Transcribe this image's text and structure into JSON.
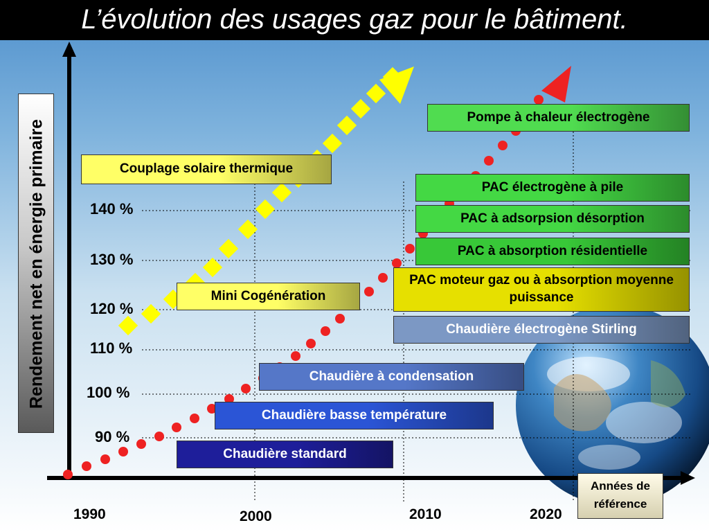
{
  "title": "L’évolution des usages gaz pour le bâtiment.",
  "y_axis_title": "Rendement net en énergie primaire",
  "x_axis_title": "Années de référence",
  "y_ticks": [
    {
      "label": "90 %",
      "value": 90
    },
    {
      "label": "100 %",
      "value": 100
    },
    {
      "label": "110 %",
      "value": 110
    },
    {
      "label": "120 %",
      "value": 120
    },
    {
      "label": "130 %",
      "value": 130
    },
    {
      "label": "140 %",
      "value": 140
    }
  ],
  "x_ticks": [
    "1990",
    "2000",
    "2010",
    "2020"
  ],
  "technologies": [
    {
      "label": "Chaudière standard",
      "bg": "#1e1e9a",
      "fg": "#ffffff"
    },
    {
      "label": "Chaudière basse température",
      "bg": "#2b55d6",
      "fg": "#ffffff"
    },
    {
      "label": "Chaudière à condensation",
      "bg": "#5577c8",
      "fg": "#ffffff"
    },
    {
      "label": "Chaudière électrogène Stirling",
      "bg": "#7c98c4",
      "fg": "#ffffff"
    },
    {
      "label": "Mini Cogénération",
      "bg": "#ffff66",
      "fg": "#000000"
    },
    {
      "label": "Couplage solaire thermique",
      "bg": "#ffff66",
      "fg": "#000000"
    },
    {
      "label": "PAC moteur gaz ou à absorption moyenne puissance",
      "bg": "#e6e000",
      "fg": "#000000"
    },
    {
      "label": "PAC à absorption résidentielle",
      "bg": "#38c838",
      "fg": "#000000"
    },
    {
      "label": "PAC à adsorpsion désorption",
      "bg": "#44d844",
      "fg": "#000000"
    },
    {
      "label": "PAC électrogène à pile",
      "bg": "#44d844",
      "fg": "#000000"
    },
    {
      "label": "Pompe à chaleur électrogène",
      "bg": "#50dc50",
      "fg": "#000000"
    }
  ],
  "colors": {
    "title_bg": "#000000",
    "red_trend": "#ee2222",
    "yellow_trend": "#ffff00",
    "axis": "#000000"
  }
}
